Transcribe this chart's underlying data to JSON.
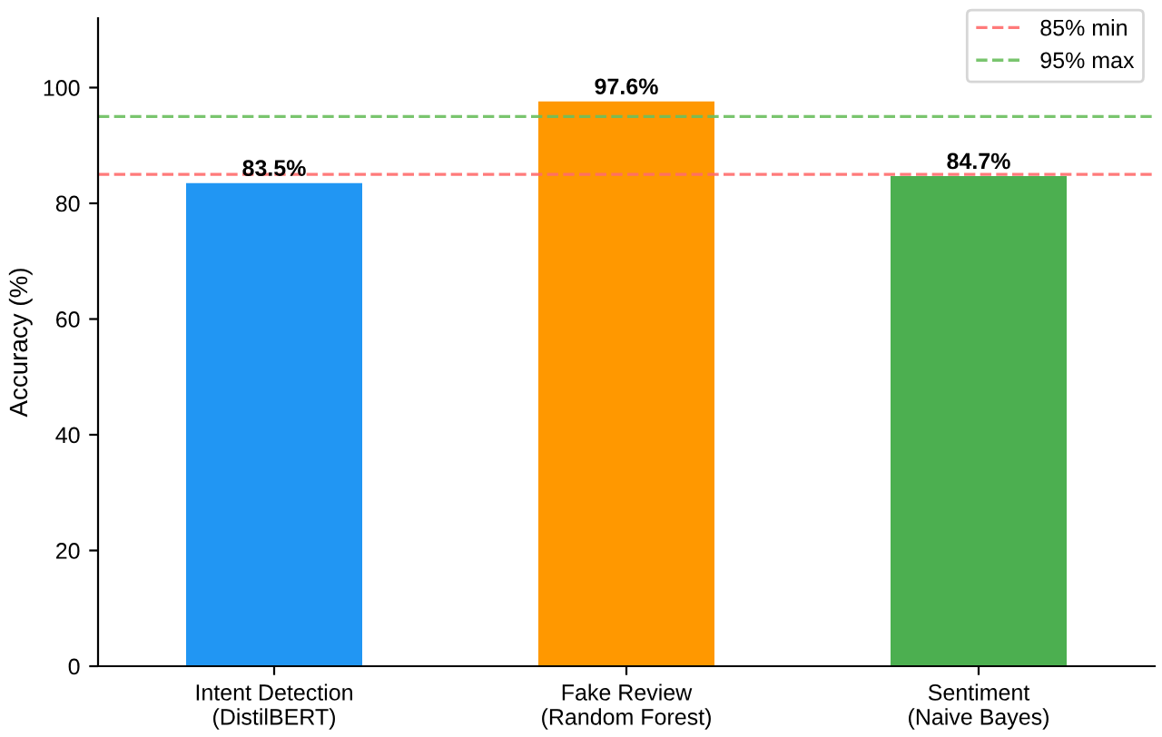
{
  "chart_data": {
    "type": "bar",
    "ylabel": "Accuracy (%)",
    "categories": [
      "Intent Detection\n(DistilBERT)",
      "Fake Review\n(Random Forest)",
      "Sentiment\n(Naive Bayes)"
    ],
    "values": [
      83.5,
      97.6,
      84.7
    ],
    "colors": [
      "#2196f3",
      "#ff9800",
      "#4caf50"
    ],
    "value_labels": [
      "83.5%",
      "97.6%",
      "84.7%"
    ],
    "ylim": [
      0,
      112
    ],
    "yticks": [
      0,
      20,
      40,
      60,
      80,
      100
    ],
    "ref_lines": [
      {
        "axis": "y",
        "value": 85,
        "label": "85% min",
        "color": "#ff6b6b",
        "line_style": "dashed"
      },
      {
        "axis": "y",
        "value": 95,
        "label": "95% max",
        "color": "#6abf5e",
        "line_style": "dashed"
      }
    ],
    "legend": "top right",
    "grid": false
  }
}
